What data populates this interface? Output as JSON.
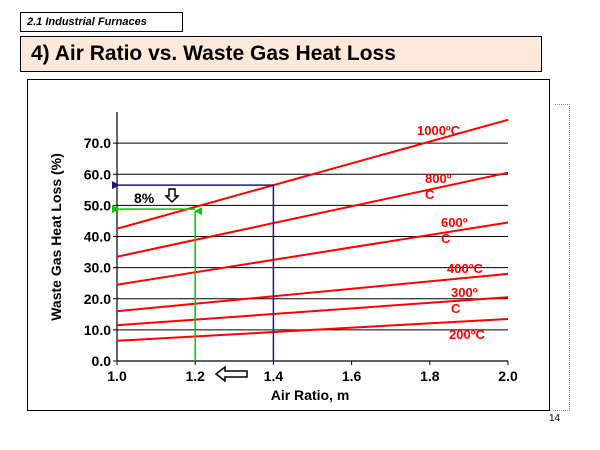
{
  "section_tag": "2.1  Industrial Furnaces",
  "title": "4) Air Ratio vs. Waste Gas Heat Loss",
  "page_number": "14",
  "colors": {
    "series": "#ff0000",
    "annotation_blue": "#1a1a7a",
    "annotation_green": "#00cc00",
    "grid": "#000000"
  },
  "chart_data": {
    "type": "line",
    "title": "",
    "xlabel": "Air Ratio, m",
    "ylabel": "Waste Gas Heat Loss (%)",
    "xlim": [
      1.0,
      2.0
    ],
    "ylim": [
      0.0,
      80.0
    ],
    "x_ticks": [
      "1.0",
      "1.2",
      "1.4",
      "1.6",
      "1.8",
      "2.0"
    ],
    "y_ticks": [
      "0.0",
      "10.0",
      "20.0",
      "30.0",
      "40.0",
      "50.0",
      "60.0",
      "70.0"
    ],
    "series": [
      {
        "name": "1000ºC",
        "label_lines": [
          "1000ºC"
        ],
        "x": [
          1.0,
          2.0
        ],
        "y": [
          42.5,
          77.5
        ]
      },
      {
        "name": "800ºC",
        "label_lines": [
          "800º",
          "C"
        ],
        "x": [
          1.0,
          2.0
        ],
        "y": [
          33.5,
          60.5
        ]
      },
      {
        "name": "600ºC",
        "label_lines": [
          "600º",
          "C"
        ],
        "x": [
          1.0,
          2.0
        ],
        "y": [
          24.5,
          44.5
        ]
      },
      {
        "name": "400ºC",
        "label_lines": [
          "400ºC"
        ],
        "x": [
          1.0,
          2.0
        ],
        "y": [
          16.0,
          28.0
        ]
      },
      {
        "name": "300ºC",
        "label_lines": [
          "300º",
          "C"
        ],
        "x": [
          1.0,
          2.0
        ],
        "y": [
          11.5,
          20.5
        ]
      },
      {
        "name": "200ºC",
        "label_lines": [
          "200ºC"
        ],
        "x": [
          1.0,
          2.0
        ],
        "y": [
          6.5,
          13.5
        ]
      }
    ],
    "annotations": {
      "difference_label": "8%",
      "blue_point": {
        "x": 1.4,
        "y": 56.5
      },
      "green_point": {
        "x": 1.2,
        "y": 48.8
      }
    }
  }
}
